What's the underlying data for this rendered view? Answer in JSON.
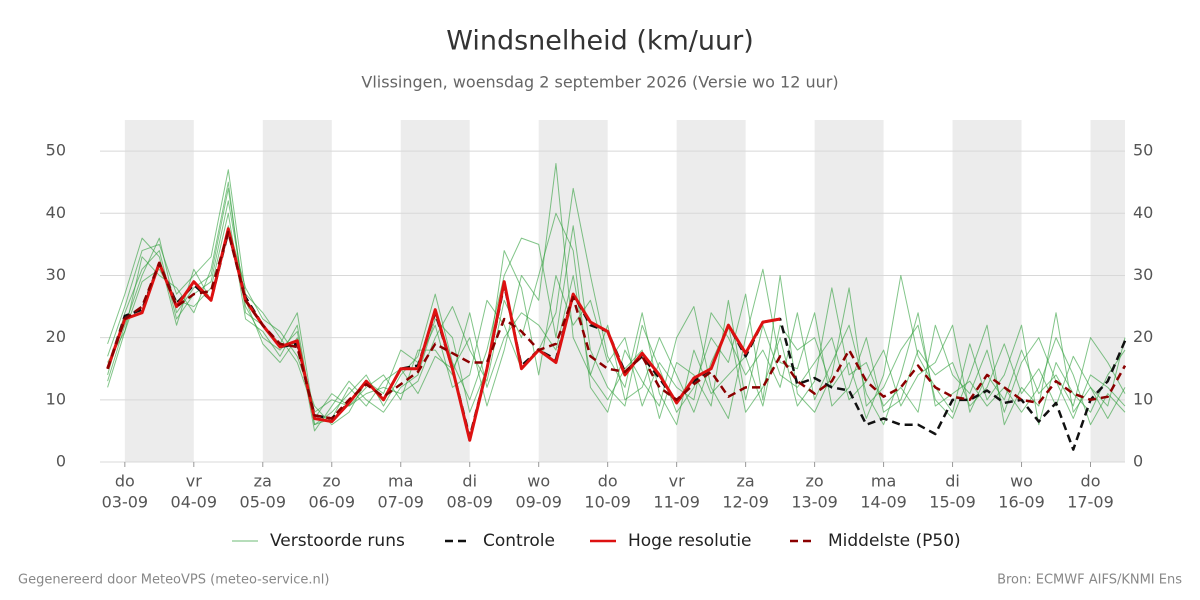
{
  "chart_data": {
    "type": "line",
    "title": "Windsnelheid (km/uur)",
    "subtitle": "Vlissingen, woensdag  2 september 2026 (Versie wo 12 uur)",
    "footer_left": "Gegenereerd door MeteoVPS (meteo-service.nl)",
    "footer_right": "Bron: ECMWF AIFS/KNMI Ens",
    "x": [
      -0.25,
      0,
      0.25,
      0.5,
      0.75,
      1,
      1.25,
      1.5,
      1.75,
      2,
      2.25,
      2.5,
      2.75,
      3,
      3.25,
      3.5,
      3.75,
      4,
      4.25,
      4.5,
      4.75,
      5,
      5.25,
      5.5,
      5.75,
      6,
      6.25,
      6.5,
      6.75,
      7,
      7.25,
      7.5,
      7.75,
      8,
      8.25,
      8.5,
      8.75,
      9,
      9.25,
      9.5,
      9.75,
      10,
      10.25,
      10.5,
      10.75,
      11,
      11.25,
      11.5,
      11.75,
      12,
      12.25,
      12.5,
      12.75,
      13,
      13.25,
      13.5,
      13.75,
      14,
      14.25,
      14.5
    ],
    "xlim": [
      -0.36,
      14.5
    ],
    "xticks": [
      {
        "value": 0,
        "weekday": "do",
        "date": "03-09"
      },
      {
        "value": 1,
        "weekday": "vr",
        "date": "04-09"
      },
      {
        "value": 2,
        "weekday": "za",
        "date": "05-09"
      },
      {
        "value": 3,
        "weekday": "zo",
        "date": "06-09"
      },
      {
        "value": 4,
        "weekday": "ma",
        "date": "07-09"
      },
      {
        "value": 5,
        "weekday": "di",
        "date": "08-09"
      },
      {
        "value": 6,
        "weekday": "wo",
        "date": "09-09"
      },
      {
        "value": 7,
        "weekday": "do",
        "date": "10-09"
      },
      {
        "value": 8,
        "weekday": "vr",
        "date": "11-09"
      },
      {
        "value": 9,
        "weekday": "za",
        "date": "12-09"
      },
      {
        "value": 10,
        "weekday": "zo",
        "date": "13-09"
      },
      {
        "value": 11,
        "weekday": "ma",
        "date": "14-09"
      },
      {
        "value": 12,
        "weekday": "di",
        "date": "15-09"
      },
      {
        "value": 13,
        "weekday": "wo",
        "date": "16-09"
      },
      {
        "value": 14,
        "weekday": "do",
        "date": "17-09"
      }
    ],
    "ylim": [
      0,
      55
    ],
    "yticks": [
      0,
      10,
      20,
      30,
      40,
      50
    ],
    "grid": true,
    "legend": "bottom",
    "series": [
      {
        "name": "Verstoorde runs",
        "color": "#2e9e3a",
        "dashed": false,
        "runs": [
          [
            13,
            22,
            30,
            36,
            24,
            28,
            30,
            44,
            25,
            20,
            18,
            21,
            6,
            8,
            11,
            14,
            9,
            14,
            17,
            27,
            16,
            10,
            18,
            30,
            36,
            35,
            20,
            38,
            18,
            12,
            9,
            22,
            15,
            8,
            12,
            20,
            16,
            27,
            10,
            30,
            11,
            8,
            14,
            28,
            9,
            12,
            18,
            22,
            10,
            7,
            14,
            22,
            6,
            12,
            9,
            24,
            8,
            12,
            7,
            12
          ],
          [
            17,
            25,
            34,
            35,
            27,
            30,
            33,
            47,
            27,
            24,
            20,
            16,
            8,
            10,
            9,
            11,
            12,
            11,
            13,
            20,
            25,
            18,
            13,
            26,
            20,
            30,
            40,
            34,
            12,
            8,
            18,
            13,
            9,
            20,
            25,
            12,
            7,
            20,
            31,
            16,
            15,
            24,
            9,
            12,
            20,
            8,
            10,
            18,
            14,
            16,
            9,
            12,
            19,
            11,
            15,
            9,
            17,
            12,
            9,
            20
          ],
          [
            12,
            21,
            29,
            31,
            26,
            25,
            28,
            40,
            23,
            21,
            17,
            22,
            6,
            7,
            12,
            9,
            13,
            15,
            11,
            17,
            15,
            20,
            9,
            18,
            30,
            26,
            48,
            20,
            14,
            22,
            10,
            12,
            20,
            14,
            8,
            16,
            22,
            8,
            12,
            20,
            9,
            13,
            28,
            14,
            16,
            9,
            12,
            8,
            22,
            14,
            11,
            18,
            8,
            16,
            20,
            13,
            7,
            14,
            12,
            9
          ],
          [
            19,
            27,
            36,
            33,
            22,
            31,
            26,
            38,
            28,
            23,
            21,
            17,
            9,
            6,
            8,
            13,
            11,
            18,
            16,
            22,
            12,
            14,
            26,
            22,
            15,
            18,
            24,
            44,
            30,
            17,
            12,
            24,
            11,
            6,
            18,
            11,
            14,
            17,
            9,
            22,
            18,
            20,
            12,
            16,
            7,
            14,
            30,
            17,
            12,
            8,
            19,
            10,
            14,
            22,
            6,
            16,
            11,
            8,
            14,
            18
          ],
          [
            14,
            24,
            31,
            34,
            23,
            27,
            29,
            42,
            26,
            19,
            16,
            20,
            5,
            9,
            13,
            10,
            8,
            12,
            14,
            23,
            20,
            8,
            15,
            34,
            28,
            14,
            30,
            22,
            26,
            16,
            20,
            9,
            16,
            12,
            10,
            24,
            20,
            14,
            18,
            12,
            24,
            10,
            16,
            22,
            11,
            6,
            14,
            24,
            9,
            11,
            13,
            9,
            12,
            8,
            12,
            20,
            14,
            6,
            11,
            8
          ],
          [
            16,
            21,
            33,
            30,
            28,
            24,
            31,
            45,
            24,
            22,
            19,
            24,
            7,
            11,
            9,
            12,
            14,
            10,
            18,
            18,
            14,
            24,
            12,
            20,
            24,
            22,
            18,
            30,
            14,
            10,
            15,
            18,
            7,
            16,
            14,
            9,
            26,
            10,
            22,
            14,
            12,
            16,
            20,
            10,
            13,
            18,
            9,
            14,
            16,
            22,
            8,
            14,
            10,
            18,
            11,
            14,
            9,
            20,
            16,
            11
          ]
        ]
      },
      {
        "name": "Controle",
        "color": "#111111",
        "dashed": true,
        "values": [
          15,
          23.5,
          24.5,
          32,
          25.5,
          28.5,
          26,
          37,
          26.5,
          22,
          18.5,
          19,
          7.5,
          7,
          9.5,
          13,
          10,
          15,
          15.5,
          24,
          15,
          4,
          15,
          28.5,
          15.5,
          18,
          16.5,
          27,
          22,
          21,
          14.5,
          17,
          13.5,
          9.5,
          13,
          15,
          22,
          17,
          22.5,
          23,
          12.5,
          13.5,
          12,
          11.5,
          6,
          7,
          6,
          6,
          4.5,
          10,
          10,
          11.5,
          9.5,
          10,
          6.5,
          9.5,
          2,
          10,
          13,
          19.5
        ]
      },
      {
        "name": "Hoge resolutie",
        "color": "#dd1111",
        "dashed": false,
        "values": [
          15,
          23,
          24,
          32,
          25,
          29,
          26,
          37.5,
          26,
          22,
          18.5,
          19.5,
          7,
          6.5,
          9.5,
          13,
          10,
          15,
          15,
          24.5,
          15,
          3.5,
          15,
          29,
          15,
          18,
          16,
          27,
          22.5,
          21,
          14,
          17.5,
          14,
          9.5,
          13.5,
          15,
          22,
          17.5,
          22.5,
          23,
          null,
          null,
          null,
          null,
          null,
          null,
          null,
          null,
          null,
          null,
          null,
          null,
          null,
          null,
          null,
          null,
          null,
          null,
          null,
          null
        ]
      },
      {
        "name": "Middelste (P50)",
        "color": "#8b0000",
        "dashed": true,
        "values": [
          15,
          23,
          25,
          32,
          25,
          27,
          27.5,
          37,
          26,
          22,
          19,
          18.5,
          7.5,
          7,
          10,
          12.5,
          10.5,
          12.5,
          14.5,
          19,
          17.5,
          16,
          16,
          23,
          21,
          18,
          19,
          26.5,
          17,
          15,
          14.5,
          17,
          12,
          10,
          12.5,
          14.5,
          10.5,
          12,
          12,
          17,
          13,
          11,
          13,
          18,
          13,
          10.5,
          12,
          15.5,
          12,
          10.5,
          10,
          14,
          12,
          10,
          9.5,
          13,
          11,
          10,
          10.5,
          15.5
        ]
      }
    ]
  }
}
